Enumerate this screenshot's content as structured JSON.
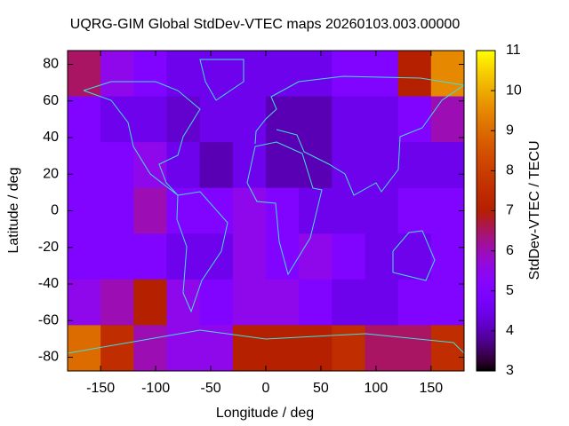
{
  "chart_data": {
    "type": "heatmap",
    "title": "UQRG-GIM Global StdDev-VTEC maps 20260103.003.00000",
    "x_label": "Longitude / deg",
    "y_label": "Latitude / deg",
    "colorbar_label": "StdDev-VTEC / TECU",
    "colormap": "gnuplot",
    "x": [
      -165,
      -135,
      -105,
      -75,
      -45,
      -15,
      15,
      45,
      75,
      105,
      135,
      165
    ],
    "y": [
      75,
      50,
      25,
      0,
      -25,
      -50,
      -75
    ],
    "z": [
      [
        6.5,
        5.5,
        5,
        4.5,
        4.5,
        4.5,
        4.5,
        4.5,
        5,
        5,
        7,
        9.5
      ],
      [
        5,
        4.5,
        4.5,
        4.2,
        4.5,
        4.5,
        4,
        4,
        4.5,
        4.5,
        5,
        6
      ],
      [
        5,
        5,
        5.5,
        4.5,
        4,
        4.5,
        4,
        4,
        4.5,
        4.5,
        4.5,
        4.5
      ],
      [
        5,
        5,
        6,
        5,
        5,
        5.5,
        5,
        4.5,
        4.5,
        4.5,
        5,
        5
      ],
      [
        5,
        5,
        5,
        4.5,
        4.5,
        5.5,
        5,
        5.5,
        5,
        4.5,
        4.5,
        5
      ],
      [
        5.5,
        6,
        7,
        5.5,
        5,
        5.5,
        5.5,
        5,
        4.5,
        4.5,
        5,
        5
      ],
      [
        9,
        7.5,
        6,
        5.5,
        5.5,
        7,
        7,
        7,
        7.5,
        6.5,
        6.5,
        7.5
      ]
    ],
    "xlim": [
      -180,
      180
    ],
    "ylim": [
      -87.5,
      87.5
    ],
    "xticks": [
      -150,
      -100,
      -50,
      0,
      50,
      100,
      150
    ],
    "yticks": [
      -80,
      -60,
      -40,
      -20,
      0,
      20,
      40,
      60,
      80
    ],
    "zlim": [
      3,
      11
    ],
    "zticks": [
      3,
      4,
      5,
      6,
      7,
      8,
      9,
      10,
      11
    ]
  }
}
